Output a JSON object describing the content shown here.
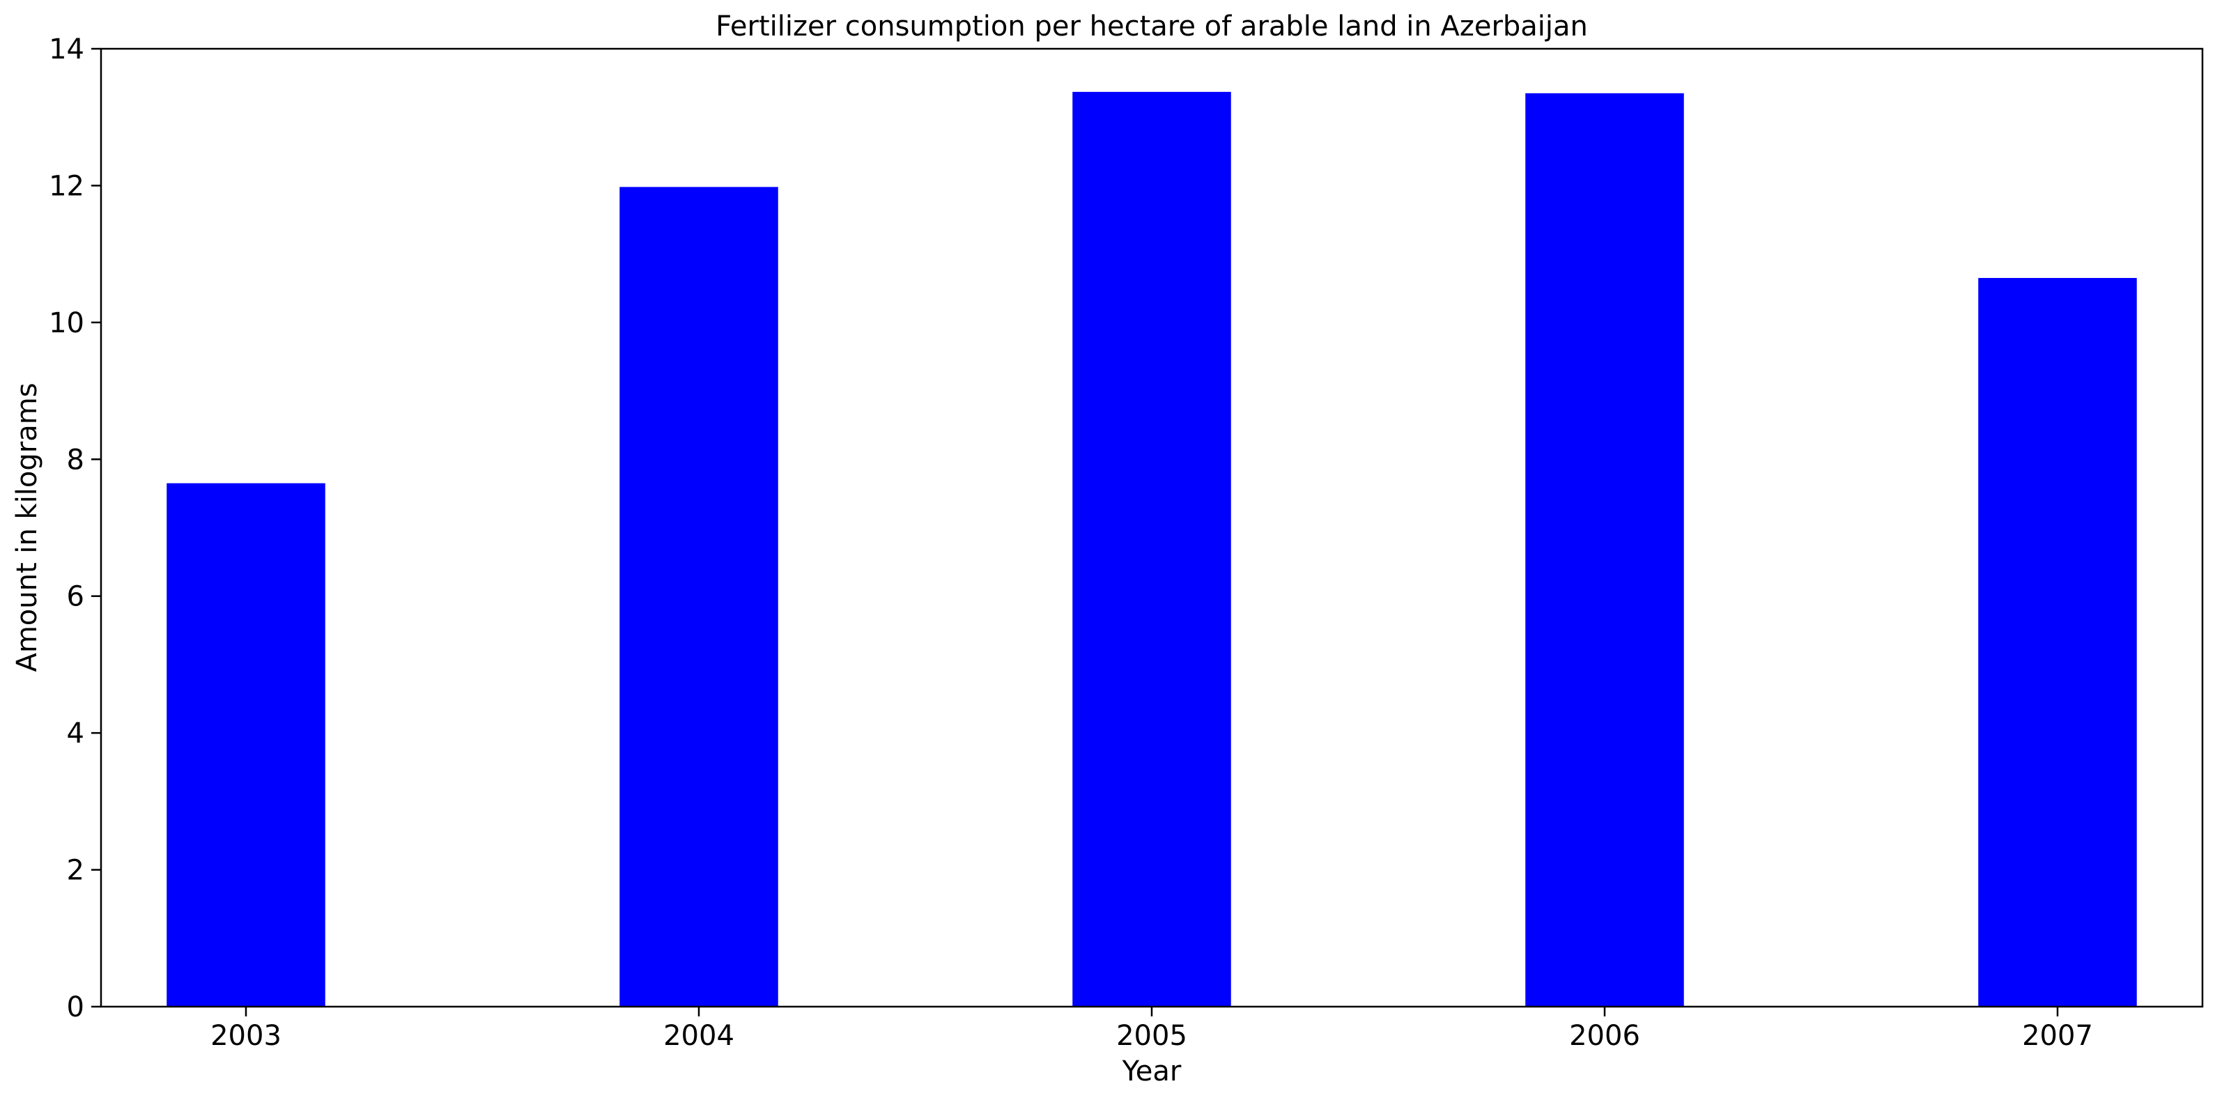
{
  "chart_data": {
    "type": "bar",
    "title": "Fertilizer consumption per hectare of arable land in Azerbaijan",
    "xlabel": "Year",
    "ylabel": "Amount in kilograms",
    "categories": [
      "2003",
      "2004",
      "2005",
      "2006",
      "2007"
    ],
    "values": [
      7.65,
      11.98,
      13.37,
      13.35,
      10.65
    ],
    "ylim": [
      0,
      14
    ],
    "yticks": [
      0,
      2,
      4,
      6,
      8,
      10,
      12,
      14
    ],
    "grid": false,
    "legend": "none",
    "bar_color": "#0000ff"
  }
}
